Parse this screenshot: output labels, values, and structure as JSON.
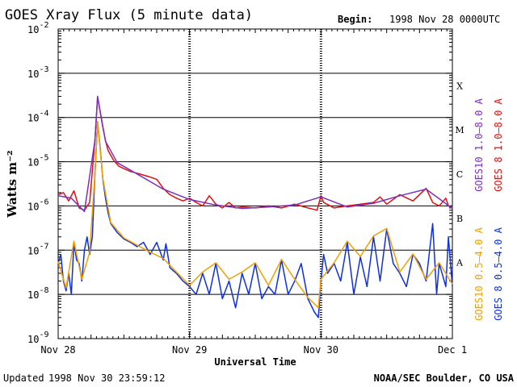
{
  "chart_data": {
    "type": "line",
    "title": "GOES Xray Flux (5 minute data)",
    "begin_label": "Begin:",
    "begin_value": "1998 Nov 28 0000UTC",
    "xlabel": "Universal Time",
    "ylabel": "Watts m⁻²",
    "y_scale": "log",
    "ylim": [
      1e-09,
      0.01
    ],
    "y_ticks": [
      {
        "v": 1e-09,
        "mant": "10",
        "exp": "-9"
      },
      {
        "v": 1e-08,
        "mant": "10",
        "exp": "-8"
      },
      {
        "v": 1e-07,
        "mant": "10",
        "exp": "-7"
      },
      {
        "v": 1e-06,
        "mant": "10",
        "exp": "-6"
      },
      {
        "v": 1e-05,
        "mant": "10",
        "exp": "-5"
      },
      {
        "v": 0.0001,
        "mant": "10",
        "exp": "-4"
      },
      {
        "v": 0.001,
        "mant": "10",
        "exp": "-3"
      },
      {
        "v": 0.01,
        "mant": "10",
        "exp": "-2"
      }
    ],
    "x_range_days": [
      0,
      3
    ],
    "x_ticks": [
      {
        "day": 0,
        "label": "Nov 28"
      },
      {
        "day": 1,
        "label": "Nov 29"
      },
      {
        "day": 2,
        "label": "Nov 30"
      },
      {
        "day": 3,
        "label": "Dec 1"
      }
    ],
    "class_labels": [
      {
        "label": "A",
        "v": 3.16e-08
      },
      {
        "label": "B",
        "v": 3.16e-07
      },
      {
        "label": "C",
        "v": 3.16e-06
      },
      {
        "label": "M",
        "v": 3.16e-05
      },
      {
        "label": "X",
        "v": 0.000316
      }
    ],
    "grid": "horizontal at each decade 1e-8 to 1e-3",
    "legend": [
      {
        "name": "GOES10 1.0–8.0 A",
        "color": "#7b2fbe"
      },
      {
        "name": "GOES 8 1.0–8.0 A",
        "color": "#e01010"
      },
      {
        "name": "GOES10 0.5–4.0 A",
        "color": "#f0a000"
      },
      {
        "name": "GOES 8 0.5–4.0 A",
        "color": "#1030e0"
      }
    ],
    "series": [
      {
        "name": "GOES 8 1.0–8.0 A",
        "color": "#e01010",
        "x": [
          0,
          0.04,
          0.08,
          0.12,
          0.16,
          0.2,
          0.24,
          0.28,
          0.3,
          0.32,
          0.34,
          0.36,
          0.38,
          0.42,
          0.46,
          0.5,
          0.55,
          0.6,
          0.65,
          0.7,
          0.75,
          0.8,
          0.85,
          0.9,
          0.95,
          1.0,
          1.05,
          1.1,
          1.15,
          1.2,
          1.25,
          1.3,
          1.35,
          1.4,
          1.5,
          1.6,
          1.7,
          1.8,
          1.9,
          1.97,
          2.0,
          2.02,
          2.1,
          2.2,
          2.3,
          2.4,
          2.45,
          2.5,
          2.6,
          2.7,
          2.8,
          2.85,
          2.9,
          2.95,
          2.97,
          3.0
        ],
        "y": [
          1.8e-06,
          2e-06,
          1.3e-06,
          2.2e-06,
          9e-07,
          8e-07,
          1.2e-06,
          3e-05,
          0.0003,
          0.00013,
          6e-05,
          3e-05,
          1.8e-05,
          1.1e-05,
          8e-06,
          7e-06,
          6e-06,
          5.5e-06,
          5e-06,
          4.5e-06,
          4e-06,
          2.5e-06,
          1.8e-06,
          1.5e-06,
          1.3e-06,
          1.5e-06,
          1.2e-06,
          1e-06,
          1.7e-06,
          1.1e-06,
          9e-07,
          1.2e-06,
          9e-07,
          9.5e-07,
          9e-07,
          1e-06,
          9e-07,
          1.1e-06,
          9e-07,
          8e-07,
          1.7e-06,
          1.2e-06,
          9e-07,
          1e-06,
          1.1e-06,
          1.2e-06,
          1.6e-06,
          1.1e-06,
          1.8e-06,
          1.3e-06,
          2.5e-06,
          1.2e-06,
          1e-06,
          1.5e-06,
          1e-06,
          9e-07
        ]
      },
      {
        "name": "GOES 8 0.5–4.0 A",
        "color": "#1030e0",
        "x": [
          0,
          0.02,
          0.04,
          0.06,
          0.08,
          0.1,
          0.12,
          0.14,
          0.16,
          0.18,
          0.2,
          0.22,
          0.24,
          0.26,
          0.28,
          0.3,
          0.32,
          0.34,
          0.36,
          0.38,
          0.4,
          0.45,
          0.5,
          0.55,
          0.6,
          0.65,
          0.7,
          0.75,
          0.8,
          0.82,
          0.85,
          0.9,
          0.95,
          1.0,
          1.05,
          1.1,
          1.15,
          1.2,
          1.25,
          1.3,
          1.35,
          1.4,
          1.45,
          1.5,
          1.55,
          1.6,
          1.65,
          1.7,
          1.75,
          1.8,
          1.85,
          1.9,
          1.95,
          1.98,
          2.0,
          2.02,
          2.05,
          2.1,
          2.15,
          2.2,
          2.25,
          2.3,
          2.35,
          2.4,
          2.45,
          2.5,
          2.55,
          2.6,
          2.65,
          2.7,
          2.75,
          2.8,
          2.85,
          2.88,
          2.9,
          2.95,
          2.97,
          3.0
        ],
        "y": [
          5e-08,
          8e-08,
          2e-08,
          1.2e-08,
          3e-08,
          1e-08,
          1.5e-07,
          6e-08,
          5e-08,
          2e-08,
          1e-07,
          2e-07,
          8e-08,
          2e-07,
          5e-06,
          8e-05,
          2e-05,
          4e-06,
          1.5e-06,
          7e-07,
          4e-07,
          2.5e-07,
          1.8e-07,
          1.5e-07,
          1.2e-07,
          1.5e-07,
          8e-08,
          1.5e-07,
          6e-08,
          1.4e-07,
          4e-08,
          3e-08,
          2e-08,
          1.5e-08,
          1e-08,
          3e-08,
          1e-08,
          5e-08,
          8e-09,
          2e-08,
          5e-09,
          3e-08,
          1e-08,
          5e-08,
          8e-09,
          1.5e-08,
          1e-08,
          6e-08,
          1e-08,
          2e-08,
          5e-08,
          8e-09,
          4e-09,
          3e-09,
          2e-08,
          8e-08,
          3e-08,
          5e-08,
          2e-08,
          1.5e-07,
          1e-08,
          7e-08,
          1.5e-08,
          2e-07,
          2e-08,
          3e-07,
          5e-08,
          3e-08,
          1.5e-08,
          8e-08,
          5e-08,
          2e-08,
          4e-07,
          1e-08,
          5e-08,
          1.5e-08,
          2e-07,
          1.5e-08
        ]
      },
      {
        "name": "GOES10 0.5–4.0 A",
        "color": "#f0a000",
        "x": [
          0,
          0.06,
          0.12,
          0.18,
          0.24,
          0.28,
          0.3,
          0.34,
          0.4,
          0.5,
          0.6,
          0.7,
          0.8,
          0.9,
          1.0,
          1.1,
          1.2,
          1.3,
          1.4,
          1.5,
          1.6,
          1.7,
          1.8,
          1.9,
          1.98,
          2.0,
          2.1,
          2.2,
          2.3,
          2.4,
          2.5,
          2.6,
          2.7,
          2.8,
          2.9,
          3.0
        ],
        "y": [
          5.5e-08,
          1.4e-08,
          1.6e-07,
          2.2e-08,
          9e-08,
          5.2e-06,
          8e-05,
          4.2e-06,
          4.2e-07,
          1.9e-07,
          1.3e-07,
          9e-08,
          6.5e-08,
          3.2e-08,
          1.6e-08,
          3.2e-08,
          5.2e-08,
          2.2e-08,
          3.2e-08,
          5.2e-08,
          1.6e-08,
          6.2e-08,
          2.2e-08,
          8.5e-09,
          5e-09,
          2.2e-08,
          5.2e-08,
          1.6e-07,
          7.2e-08,
          2.1e-07,
          3.1e-07,
          3.2e-08,
          8.2e-08,
          2.2e-08,
          5.2e-08,
          1.7e-08
        ]
      },
      {
        "name": "GOES10 1.0–8.0 A",
        "color": "#7b2fbe",
        "x": [
          0,
          0.1,
          0.2,
          0.28,
          0.3,
          0.36,
          0.45,
          0.6,
          0.8,
          1.0,
          1.2,
          1.4,
          1.6,
          1.8,
          2.0,
          2.2,
          2.4,
          2.6,
          2.8,
          3.0
        ],
        "y": [
          1.7e-06,
          1.5e-06,
          7.5e-07,
          3e-05,
          0.00029,
          2.9e-05,
          9.5e-06,
          5.3e-06,
          2.4e-06,
          1.4e-06,
          1.05e-06,
          8.8e-07,
          9.5e-07,
          1.05e-06,
          1.6e-06,
          9.5e-07,
          1.15e-06,
          1.7e-06,
          2.4e-06,
          8.8e-07
        ]
      }
    ]
  },
  "footer": {
    "updated_label": "Updated",
    "updated_value": "1998 Nov 30 23:59:12",
    "credit": "NOAA/SEC Boulder, CO USA"
  }
}
